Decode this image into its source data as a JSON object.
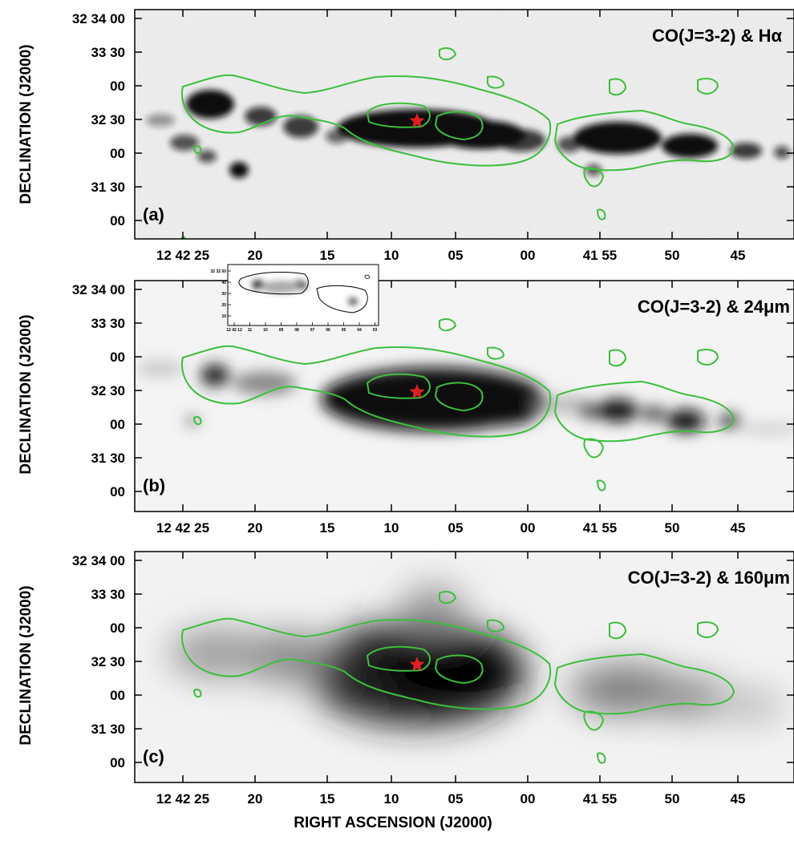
{
  "figure": {
    "xlabel": "RIGHT ASCENSION (J2000)",
    "ylabel": "DECLINATION (J2000)",
    "x_ticks": [
      "12 42 25",
      "20",
      "15",
      "10",
      "05",
      "00",
      "41 55",
      "50",
      "45"
    ],
    "y_ticks": [
      "32 34 00",
      "33 30",
      "00",
      "32 30",
      "00",
      "31 30",
      "00"
    ],
    "contour_color": "#3cbf3c",
    "marker_color": "#e02020",
    "panels": [
      {
        "id": "a",
        "panel_label": "(a)",
        "title": "CO(J=3-2) & Hα"
      },
      {
        "id": "b",
        "panel_label": "(b)",
        "title": "CO(J=3-2) & 24μm"
      },
      {
        "id": "c",
        "panel_label": "(c)",
        "title": "CO(J=3-2) & 160μm"
      }
    ],
    "inset": {
      "y_ticks": [
        "32 32 50",
        "40",
        "30",
        "20",
        "10"
      ],
      "x_ticks": [
        "12 42 12",
        "11",
        "10",
        "09",
        "08",
        "07",
        "06",
        "05",
        "04",
        "03"
      ]
    }
  }
}
